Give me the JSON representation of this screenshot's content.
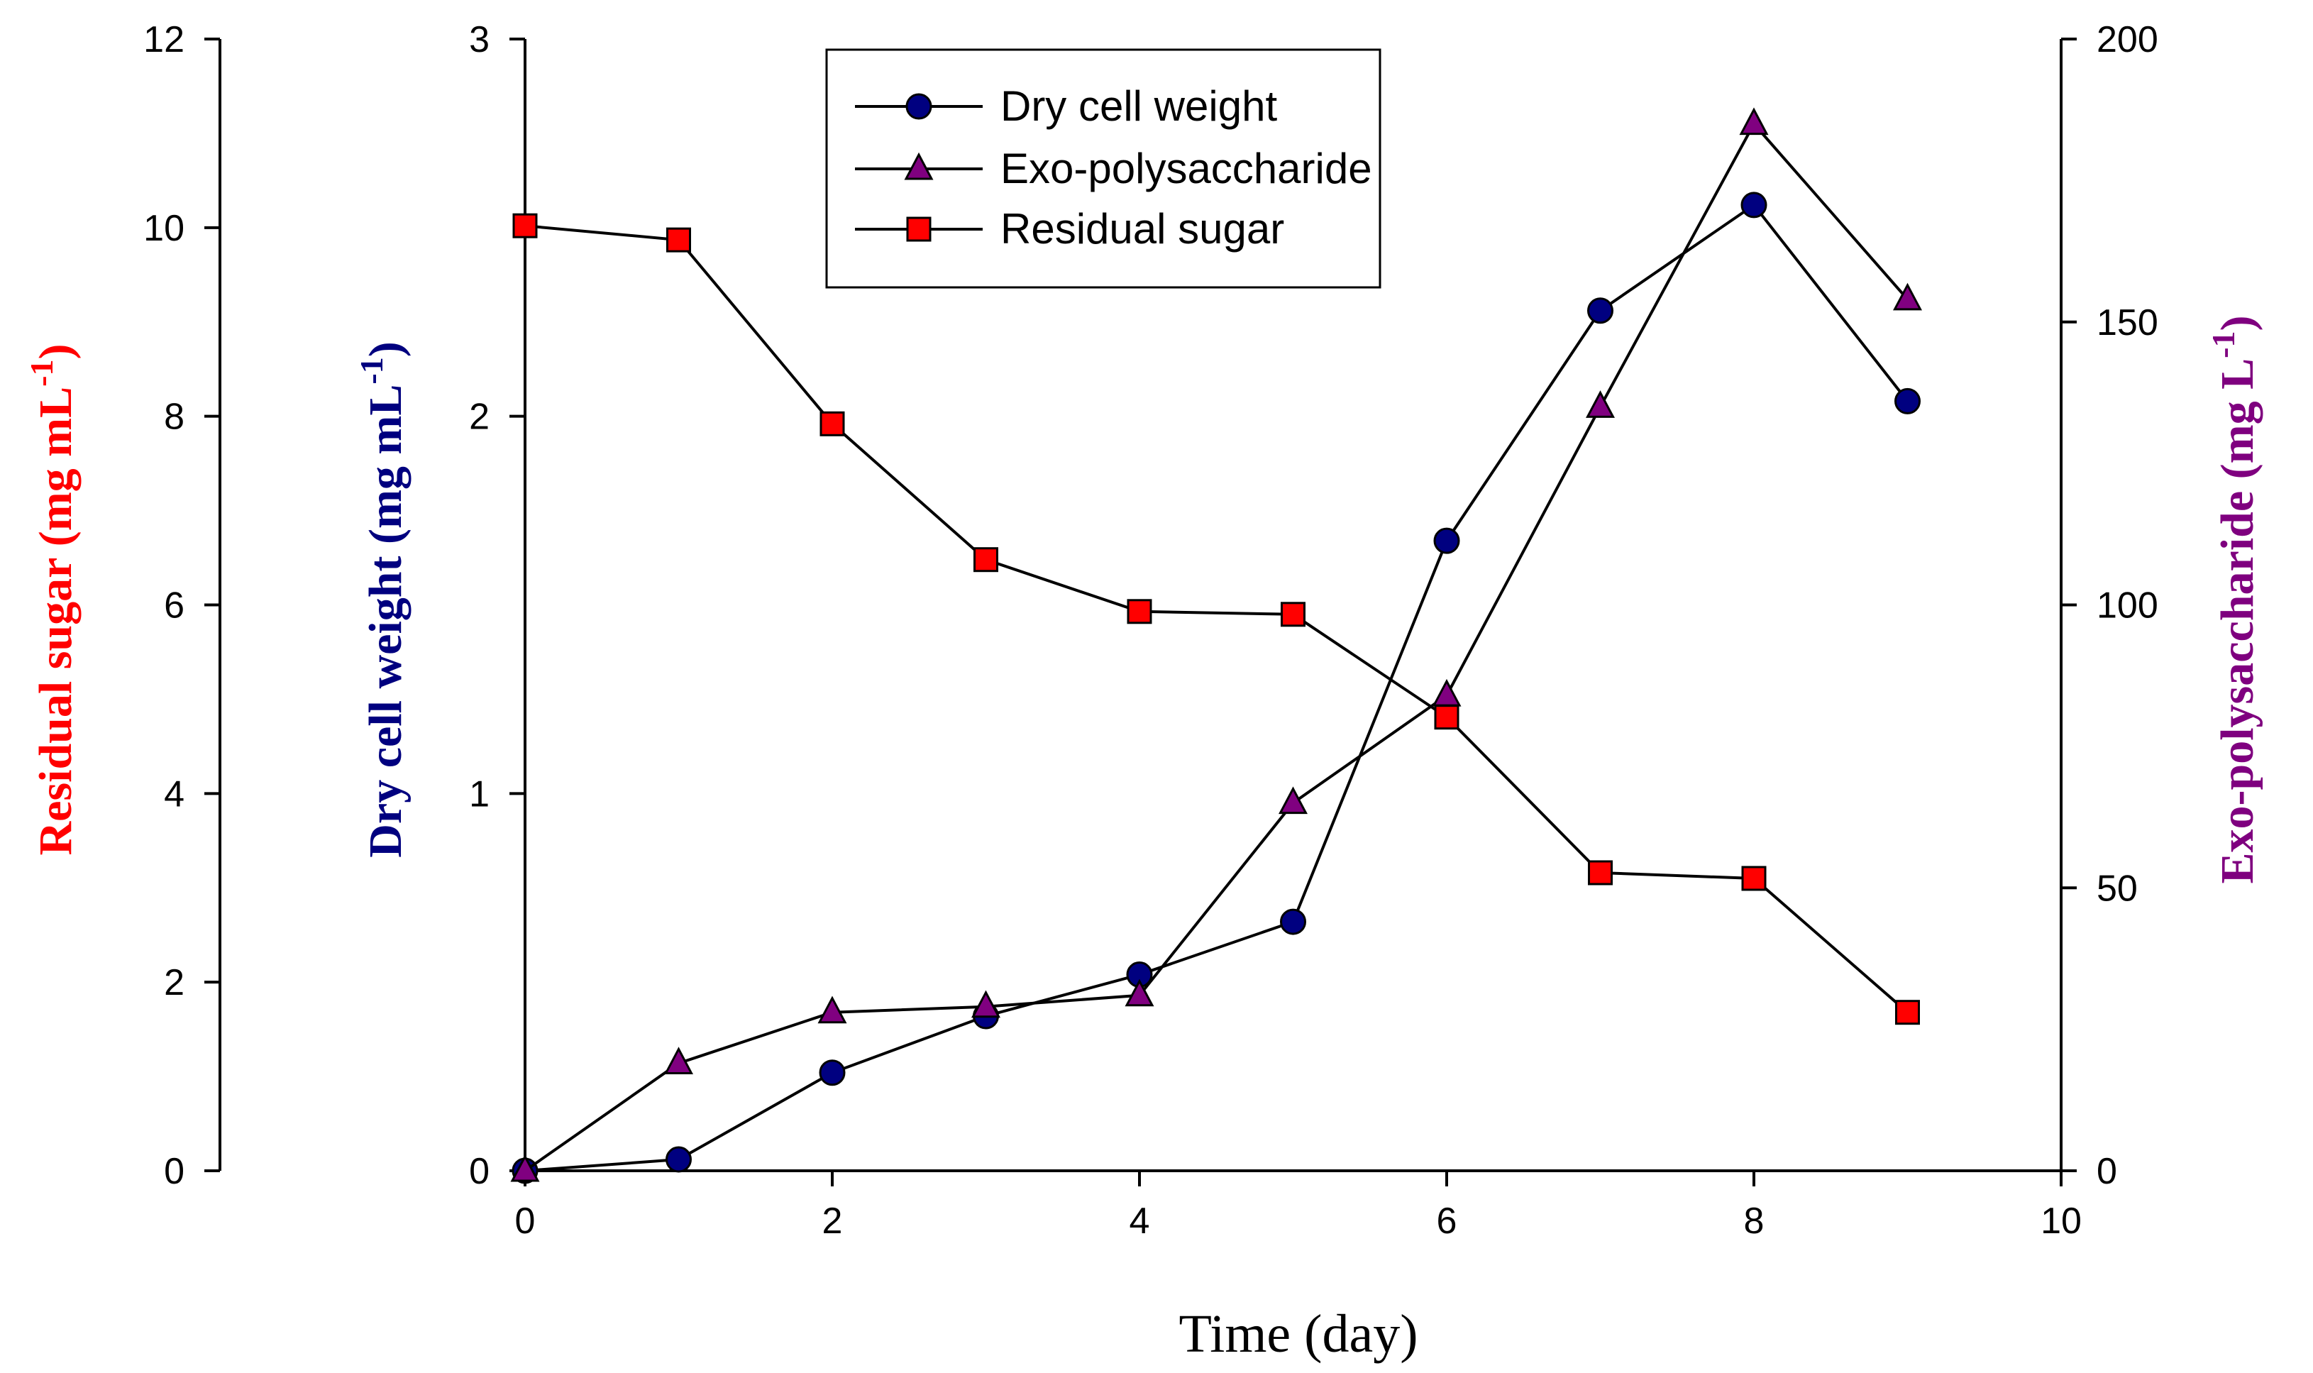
{
  "chart_data": {
    "type": "line",
    "xlabel": "Time (day)",
    "xlim": [
      0,
      10
    ],
    "xticks": [
      0,
      2,
      4,
      6,
      8,
      10
    ],
    "x": [
      0,
      1,
      2,
      3,
      4,
      5,
      6,
      7,
      8,
      9
    ],
    "axes": {
      "sugar": {
        "title": "Residual sugar (mg mL",
        "superscript": "-1",
        "close": ")",
        "color": "#ff0000",
        "ylim": [
          0,
          12
        ],
        "ticks": [
          0,
          2,
          4,
          6,
          8,
          10,
          12
        ]
      },
      "dcw": {
        "title": "Dry cell weight (mg mL",
        "superscript": "-1",
        "close": ")",
        "color": "#00007f",
        "ylim": [
          0,
          3
        ],
        "ticks": [
          0,
          1,
          2,
          3
        ]
      },
      "eps": {
        "title": "Exo-polysaccharide (mg L",
        "superscript": "-1",
        "close": ")",
        "color": "#7f007f",
        "ylim": [
          0,
          200
        ],
        "ticks": [
          0,
          50,
          100,
          150,
          200
        ]
      }
    },
    "series": [
      {
        "name": "Dry cell weight",
        "axis": "dcw",
        "marker": "circle",
        "color": "#000080",
        "values": [
          0.0,
          0.03,
          0.26,
          0.41,
          0.52,
          0.66,
          1.67,
          2.28,
          2.56,
          2.04
        ]
      },
      {
        "name": "Exo-polysaccharide",
        "axis": "eps",
        "marker": "triangle",
        "color": "#800080",
        "values": [
          0,
          19,
          28,
          29,
          31,
          65,
          84,
          135,
          185,
          154
        ]
      },
      {
        "name": "Residual sugar",
        "axis": "sugar",
        "marker": "square",
        "color": "#ff0000",
        "values": [
          10.02,
          9.87,
          7.92,
          6.48,
          5.93,
          5.9,
          4.81,
          3.16,
          3.1,
          1.68
        ]
      }
    ],
    "legend": {
      "position": "top-left-inside",
      "entries": [
        "Dry cell weight",
        "Exo-polysaccharide",
        "Residual sugar"
      ]
    }
  }
}
